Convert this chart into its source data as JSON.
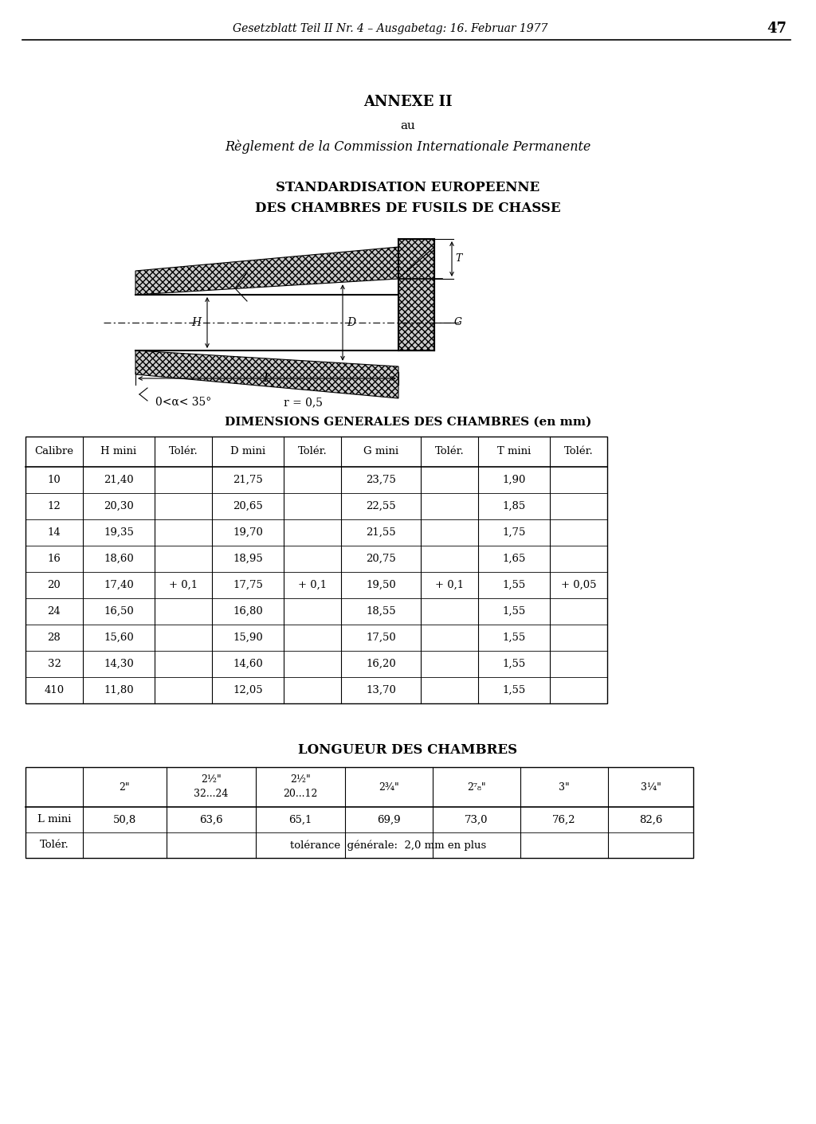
{
  "header_text": "Gesetzblatt Teil II Nr. 4 – Ausgabetag: 16. Februar 1977",
  "page_number": "47",
  "title1": "ANNEXE II",
  "title2": "au",
  "title3": "Règlement de la Commission Internationale Permanente",
  "title4": "STANDARDISATION EUROPEENNE",
  "title5": "DES CHAMBRES DE FUSILS DE CHASSE",
  "table1_title": "DIMENSIONS GENERALES DES CHAMBRES (en mm)",
  "table1_headers": [
    "Calibre",
    "H mini",
    "Tolér.",
    "D mini",
    "Tolér.",
    "G mini",
    "Tolér.",
    "T mini",
    "Tolér."
  ],
  "table1_data": [
    [
      "10",
      "21,40",
      "",
      "21,75",
      "",
      "23,75",
      "",
      "1,90",
      ""
    ],
    [
      "12",
      "20,30",
      "",
      "20,65",
      "",
      "22,55",
      "",
      "1,85",
      ""
    ],
    [
      "14",
      "19,35",
      "",
      "19,70",
      "",
      "21,55",
      "",
      "1,75",
      ""
    ],
    [
      "16",
      "18,60",
      "",
      "18,95",
      "",
      "20,75",
      "",
      "1,65",
      ""
    ],
    [
      "20",
      "17,40",
      "+ 0,1",
      "17,75",
      "+ 0,1",
      "19,50",
      "+ 0,1",
      "1,55",
      "+ 0,05"
    ],
    [
      "24",
      "16,50",
      "",
      "16,80",
      "",
      "18,55",
      "",
      "1,55",
      ""
    ],
    [
      "28",
      "15,60",
      "",
      "15,90",
      "",
      "17,50",
      "",
      "1,55",
      ""
    ],
    [
      "32",
      "14,30",
      "",
      "14,60",
      "",
      "16,20",
      "",
      "1,55",
      ""
    ],
    [
      "410",
      "11,80",
      "",
      "12,05",
      "",
      "13,70",
      "",
      "1,55",
      ""
    ]
  ],
  "table2_title": "LONGUEUR DES CHAMBRES",
  "table2_h1": [
    "",
    "2\"",
    "2½\"",
    "2½\"",
    "2¾\"",
    "2⁷₈\"",
    "3\"",
    "3¼\""
  ],
  "table2_h2": [
    "",
    "",
    "32...24",
    "20...12",
    "",
    "",
    "",
    ""
  ],
  "table2_row1_label": "L mini",
  "table2_row1_values": [
    "50,8",
    "63,6",
    "65,1",
    "69,9",
    "73,0",
    "76,2",
    "82,6"
  ],
  "table2_row2_label": "Tolér.",
  "table2_row2_value": "tolérance  générale:  2,0 mm en plus",
  "diagram_angle": "0<α< 35°",
  "diagram_r": "r = 0,5"
}
